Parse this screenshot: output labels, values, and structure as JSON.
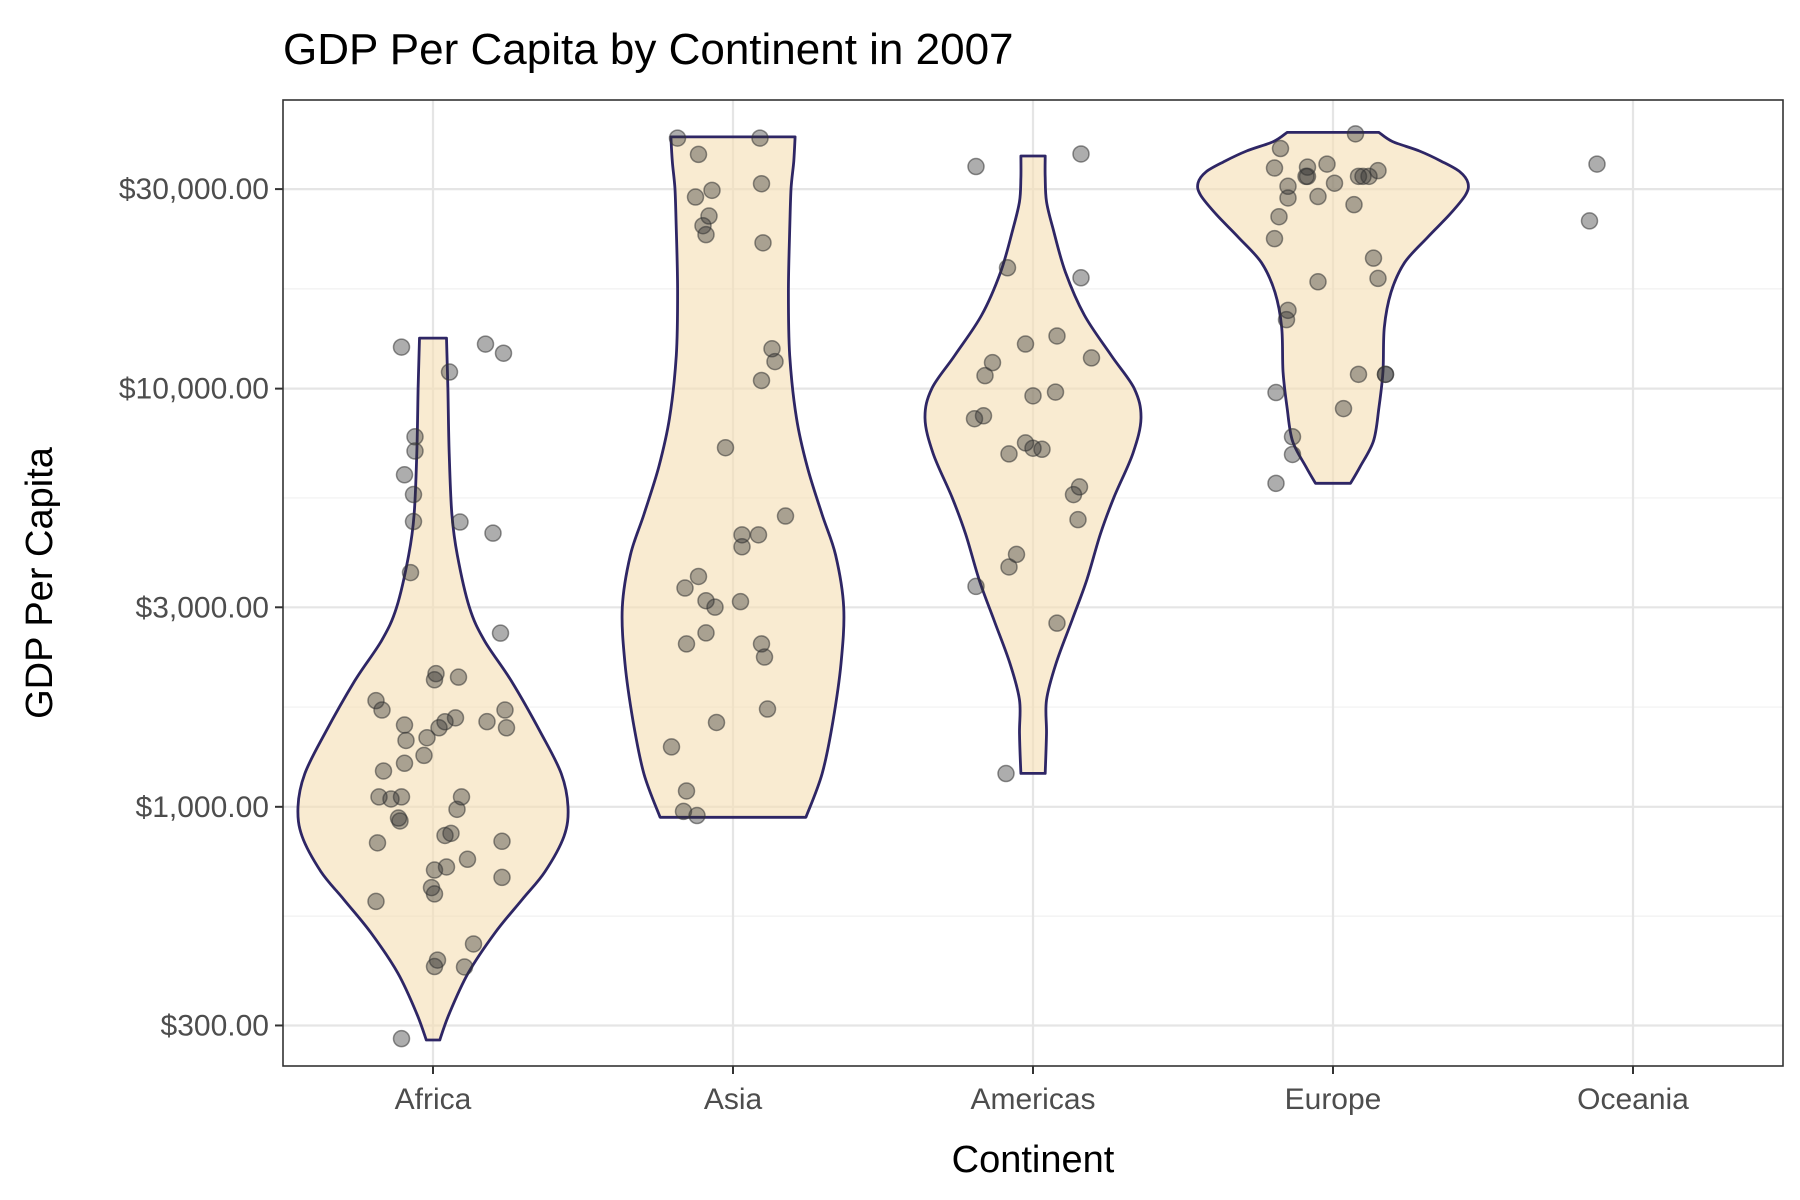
{
  "chart_data": {
    "type": "violin",
    "title": "GDP Per Capita by Continent in 2007",
    "xlabel": "Continent",
    "ylabel": "GDP Per Capita",
    "y_scale": "log10",
    "ylim": [
      240,
      49000
    ],
    "y_ticks": [
      300,
      1000,
      3000,
      10000,
      30000
    ],
    "y_tick_labels": [
      "$300.00",
      "$1,000.00",
      "$3,000.00",
      "$10,000.00",
      "$30,000.00"
    ],
    "categories": [
      "Africa",
      "Asia",
      "Americas",
      "Europe",
      "Oceania"
    ],
    "grid": true,
    "violin_fill": "#f5deb3",
    "violin_stroke": "#2e2665",
    "point_color": "#333333",
    "series": [
      {
        "category": "Africa",
        "min": 277,
        "max": 13206,
        "violin_width": [
          [
            277,
            0.05
          ],
          [
            320,
            0.12
          ],
          [
            400,
            0.26
          ],
          [
            500,
            0.46
          ],
          [
            600,
            0.66
          ],
          [
            700,
            0.83
          ],
          [
            850,
            0.97
          ],
          [
            1000,
            1.0
          ],
          [
            1200,
            0.95
          ],
          [
            1500,
            0.8
          ],
          [
            2000,
            0.58
          ],
          [
            2500,
            0.38
          ],
          [
            3000,
            0.27
          ],
          [
            4000,
            0.18
          ],
          [
            5000,
            0.14
          ],
          [
            7000,
            0.12
          ],
          [
            10000,
            0.11
          ],
          [
            13206,
            0.1
          ]
        ],
        "points": [
          [
            -0.21,
            1056
          ],
          [
            -0.19,
            1271
          ],
          [
            -0.18,
            1441
          ],
          [
            -0.36,
            1056
          ],
          [
            -0.33,
            1218
          ],
          [
            -0.38,
            594
          ],
          [
            -0.34,
            1704
          ],
          [
            -0.37,
            820
          ],
          [
            -0.28,
            1044
          ],
          [
            -0.38,
            1794
          ],
          [
            -0.19,
            1569
          ],
          [
            -0.22,
            925
          ],
          [
            -0.23,
            940
          ],
          [
            -0.21,
            12570
          ],
          [
            -0.13,
            4811
          ],
          [
            -0.15,
            3632
          ],
          [
            -0.19,
            6223
          ],
          [
            -0.12,
            7093
          ],
          [
            -0.13,
            5581
          ],
          [
            -0.12,
            7670
          ],
          [
            -0.04,
            1463
          ],
          [
            -0.06,
            1327
          ],
          [
            0.01,
            619
          ],
          [
            -0.01,
            641
          ],
          [
            0.01,
            706
          ],
          [
            0.02,
            2082
          ],
          [
            0.04,
            1545
          ],
          [
            0.08,
            1597
          ],
          [
            0.01,
            2013
          ],
          [
            0.12,
            864
          ],
          [
            0.19,
            1056
          ],
          [
            0.16,
            986
          ],
          [
            0.17,
            2042
          ],
          [
            0.15,
            1632
          ],
          [
            0.11,
            10957
          ],
          [
            0.18,
            4797
          ],
          [
            0.08,
            854
          ],
          [
            0.23,
            749
          ],
          [
            0.09,
            718
          ],
          [
            0.03,
            430
          ],
          [
            0.27,
            470
          ],
          [
            0.36,
            1598
          ],
          [
            0.4,
            4513
          ],
          [
            0.35,
            12779
          ],
          [
            0.45,
            2602
          ],
          [
            0.48,
            1704
          ],
          [
            0.47,
            12154
          ],
          [
            0.49,
            1545
          ],
          [
            0.46,
            827
          ],
          [
            0.46,
            678
          ],
          [
            0.21,
            414
          ],
          [
            0.01,
            415
          ],
          [
            -0.21,
            279
          ]
        ]
      },
      {
        "category": "Asia",
        "min": 944,
        "max": 40000,
        "violin_width": [
          [
            944,
            0.54
          ],
          [
            1200,
            0.66
          ],
          [
            1600,
            0.74
          ],
          [
            2200,
            0.8
          ],
          [
            3000,
            0.82
          ],
          [
            4000,
            0.76
          ],
          [
            5000,
            0.66
          ],
          [
            6500,
            0.55
          ],
          [
            8500,
            0.47
          ],
          [
            12000,
            0.42
          ],
          [
            17000,
            0.41
          ],
          [
            24000,
            0.42
          ],
          [
            30000,
            0.43
          ],
          [
            35000,
            0.45
          ],
          [
            40000,
            0.46
          ]
        ],
        "points": [
          [
            -0.41,
            1391
          ],
          [
            -0.31,
            2452
          ],
          [
            -0.32,
            3336
          ],
          [
            -0.31,
            1091
          ],
          [
            -0.33,
            975
          ],
          [
            -0.24,
            953
          ],
          [
            -0.23,
            3555
          ],
          [
            -0.18,
            2605
          ],
          [
            -0.18,
            3111
          ],
          [
            -0.11,
            1591
          ],
          [
            -0.12,
            3002
          ],
          [
            -0.05,
            7222
          ],
          [
            -0.2,
            24526
          ],
          [
            -0.18,
            23348
          ],
          [
            -0.25,
            28718
          ],
          [
            -0.16,
            25863
          ],
          [
            -0.14,
            29797
          ],
          [
            -0.23,
            36320
          ],
          [
            -0.37,
            39725
          ],
          [
            0.06,
            4471
          ],
          [
            0.06,
            4186
          ],
          [
            0.05,
            3095
          ],
          [
            0.17,
            4471
          ],
          [
            0.19,
            2452
          ],
          [
            0.21,
            2281
          ],
          [
            0.23,
            1713
          ],
          [
            0.26,
            12452
          ],
          [
            0.28,
            11606
          ],
          [
            0.19,
            10461
          ],
          [
            0.19,
            30901
          ],
          [
            0.2,
            22316
          ],
          [
            0.18,
            39725
          ],
          [
            0.35,
            4959
          ]
        ]
      },
      {
        "category": "Americas",
        "min": 1202,
        "max": 36000,
        "violin_width": [
          [
            1202,
            0.09
          ],
          [
            1500,
            0.1
          ],
          [
            1800,
            0.1
          ],
          [
            2200,
            0.17
          ],
          [
            2800,
            0.29
          ],
          [
            3500,
            0.4
          ],
          [
            4500,
            0.5
          ],
          [
            5500,
            0.6
          ],
          [
            7000,
            0.74
          ],
          [
            8500,
            0.8
          ],
          [
            10000,
            0.75
          ],
          [
            12000,
            0.58
          ],
          [
            15000,
            0.38
          ],
          [
            19000,
            0.24
          ],
          [
            24000,
            0.15
          ],
          [
            28000,
            0.1
          ],
          [
            32000,
            0.09
          ],
          [
            36000,
            0.09
          ]
        ],
        "points": [
          [
            -0.39,
            8473
          ],
          [
            -0.33,
            8611
          ],
          [
            -0.32,
            10740
          ],
          [
            -0.27,
            11537
          ],
          [
            -0.38,
            3365
          ],
          [
            -0.38,
            33966
          ],
          [
            -0.17,
            19450
          ],
          [
            -0.16,
            6980
          ],
          [
            -0.16,
            3746
          ],
          [
            -0.11,
            4014
          ],
          [
            -0.05,
            7416
          ],
          [
            0.0,
            7203
          ],
          [
            0.0,
            9611
          ],
          [
            -0.05,
            12784
          ],
          [
            0.06,
            7160
          ],
          [
            0.15,
            9812
          ],
          [
            0.16,
            2749
          ],
          [
            0.16,
            13362
          ],
          [
            0.27,
            5580
          ],
          [
            0.31,
            5820
          ],
          [
            0.3,
            4860
          ],
          [
            0.39,
            11842
          ],
          [
            0.32,
            18412
          ],
          [
            0.32,
            36400
          ],
          [
            -0.18,
            1201
          ]
        ]
      },
      {
        "category": "Europe",
        "min": 5937,
        "max": 41000,
        "violin_width": [
          [
            5937,
            0.13
          ],
          [
            6500,
            0.2
          ],
          [
            7500,
            0.3
          ],
          [
            9000,
            0.34
          ],
          [
            11000,
            0.37
          ],
          [
            14000,
            0.38
          ],
          [
            17000,
            0.43
          ],
          [
            20000,
            0.53
          ],
          [
            23000,
            0.7
          ],
          [
            26000,
            0.86
          ],
          [
            29000,
            0.98
          ],
          [
            31000,
            1.0
          ],
          [
            33000,
            0.94
          ],
          [
            35000,
            0.8
          ],
          [
            37000,
            0.64
          ],
          [
            39000,
            0.44
          ],
          [
            41000,
            0.34
          ]
        ],
        "points": [
          [
            -0.38,
            5937
          ],
          [
            -0.38,
            9786
          ],
          [
            -0.39,
            22833
          ],
          [
            -0.39,
            33692
          ],
          [
            -0.36,
            25768
          ],
          [
            -0.35,
            37506
          ],
          [
            -0.3,
            28569
          ],
          [
            -0.3,
            30470
          ],
          [
            -0.31,
            14619
          ],
          [
            -0.3,
            15390
          ],
          [
            -0.27,
            6960
          ],
          [
            -0.27,
            7670
          ],
          [
            -0.17,
            33859
          ],
          [
            -0.18,
            32170
          ],
          [
            -0.17,
            32170
          ],
          [
            -0.1,
            28800
          ],
          [
            -0.1,
            18009
          ],
          [
            -0.04,
            34435
          ],
          [
            0.01,
            30986
          ],
          [
            0.14,
            27538
          ],
          [
            0.15,
            40676
          ],
          [
            0.17,
            32185
          ],
          [
            0.2,
            32185
          ],
          [
            0.24,
            32185
          ],
          [
            0.3,
            33203
          ],
          [
            0.27,
            20510
          ],
          [
            0.3,
            18350
          ],
          [
            0.35,
            10820
          ],
          [
            0.17,
            10820
          ],
          [
            0.07,
            8958
          ],
          [
            0.35,
            10820
          ]
        ]
      },
      {
        "category": "Oceania",
        "points": [
          [
            -0.29,
            25185
          ],
          [
            -0.24,
            34435
          ]
        ]
      }
    ]
  }
}
